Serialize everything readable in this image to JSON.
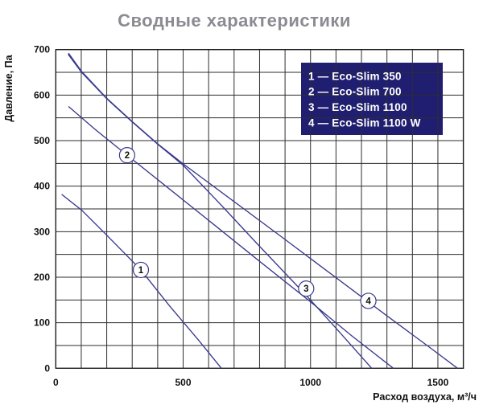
{
  "title": "Сводные характеристики",
  "chart_data": {
    "type": "line",
    "title": "Сводные характеристики",
    "xlabel": "Расход воздуха, м³/ч",
    "ylabel": "Давление, Па",
    "xlim": [
      0,
      1600
    ],
    "ylim": [
      0,
      700
    ],
    "x_ticks": [
      0,
      500,
      1000,
      1500
    ],
    "y_ticks": [
      0,
      100,
      200,
      300,
      400,
      500,
      600,
      700
    ],
    "x_grid_step": 100,
    "y_grid_step": 50,
    "grid": true,
    "legend_position": "top-right",
    "series": [
      {
        "name": "1 — Eco-Slim 350",
        "label": "1",
        "label_at": [
          334,
          216
        ],
        "points": [
          [
            23,
            382
          ],
          [
            102,
            347
          ],
          [
            197,
            294
          ],
          [
            334,
            216
          ],
          [
            445,
            138
          ],
          [
            560,
            62
          ],
          [
            650,
            0
          ]
        ]
      },
      {
        "name": "2 — Eco-Slim 700",
        "label": "2",
        "label_at": [
          280,
          468
        ],
        "points": [
          [
            50,
            575
          ],
          [
            160,
            522
          ],
          [
            280,
            468
          ],
          [
            450,
            392
          ],
          [
            620,
            316
          ],
          [
            800,
            235
          ],
          [
            1000,
            146
          ],
          [
            1160,
            72
          ],
          [
            1325,
            0
          ]
        ]
      },
      {
        "name": "3 — Eco-Slim 1100",
        "label": "3",
        "label_at": [
          983,
          175
        ],
        "points": [
          [
            48,
            690
          ],
          [
            100,
            651
          ],
          [
            200,
            592
          ],
          [
            300,
            541
          ],
          [
            400,
            492
          ],
          [
            500,
            446
          ],
          [
            650,
            358
          ],
          [
            800,
            268
          ],
          [
            983,
            160
          ],
          [
            1100,
            88
          ],
          [
            1240,
            0
          ]
        ]
      },
      {
        "name": "4 — Eco-Slim 1100 W",
        "label": "4",
        "label_at": [
          1227,
          148
        ],
        "points": [
          [
            50,
            692
          ],
          [
            100,
            653
          ],
          [
            200,
            593
          ],
          [
            300,
            542
          ],
          [
            400,
            493
          ],
          [
            500,
            449
          ],
          [
            700,
            366
          ],
          [
            900,
            283
          ],
          [
            1100,
            199
          ],
          [
            1300,
            115
          ],
          [
            1460,
            49
          ],
          [
            1577,
            0
          ]
        ]
      }
    ]
  },
  "legend": {
    "items": [
      "1 — Eco-Slim 350",
      "2 — Eco-Slim 700",
      "3 — Eco-Slim 1100",
      "4 — Eco-Slim 1100 W"
    ]
  },
  "colors": {
    "curve": "#3a3a8e",
    "grid": "#2e2e2e",
    "frame": "#1c1c1c",
    "legend_bg": "#201e70",
    "legend_text": "#ffffff",
    "title": "#8b8b92",
    "axis_text": "#111111",
    "background": "#ffffff"
  }
}
